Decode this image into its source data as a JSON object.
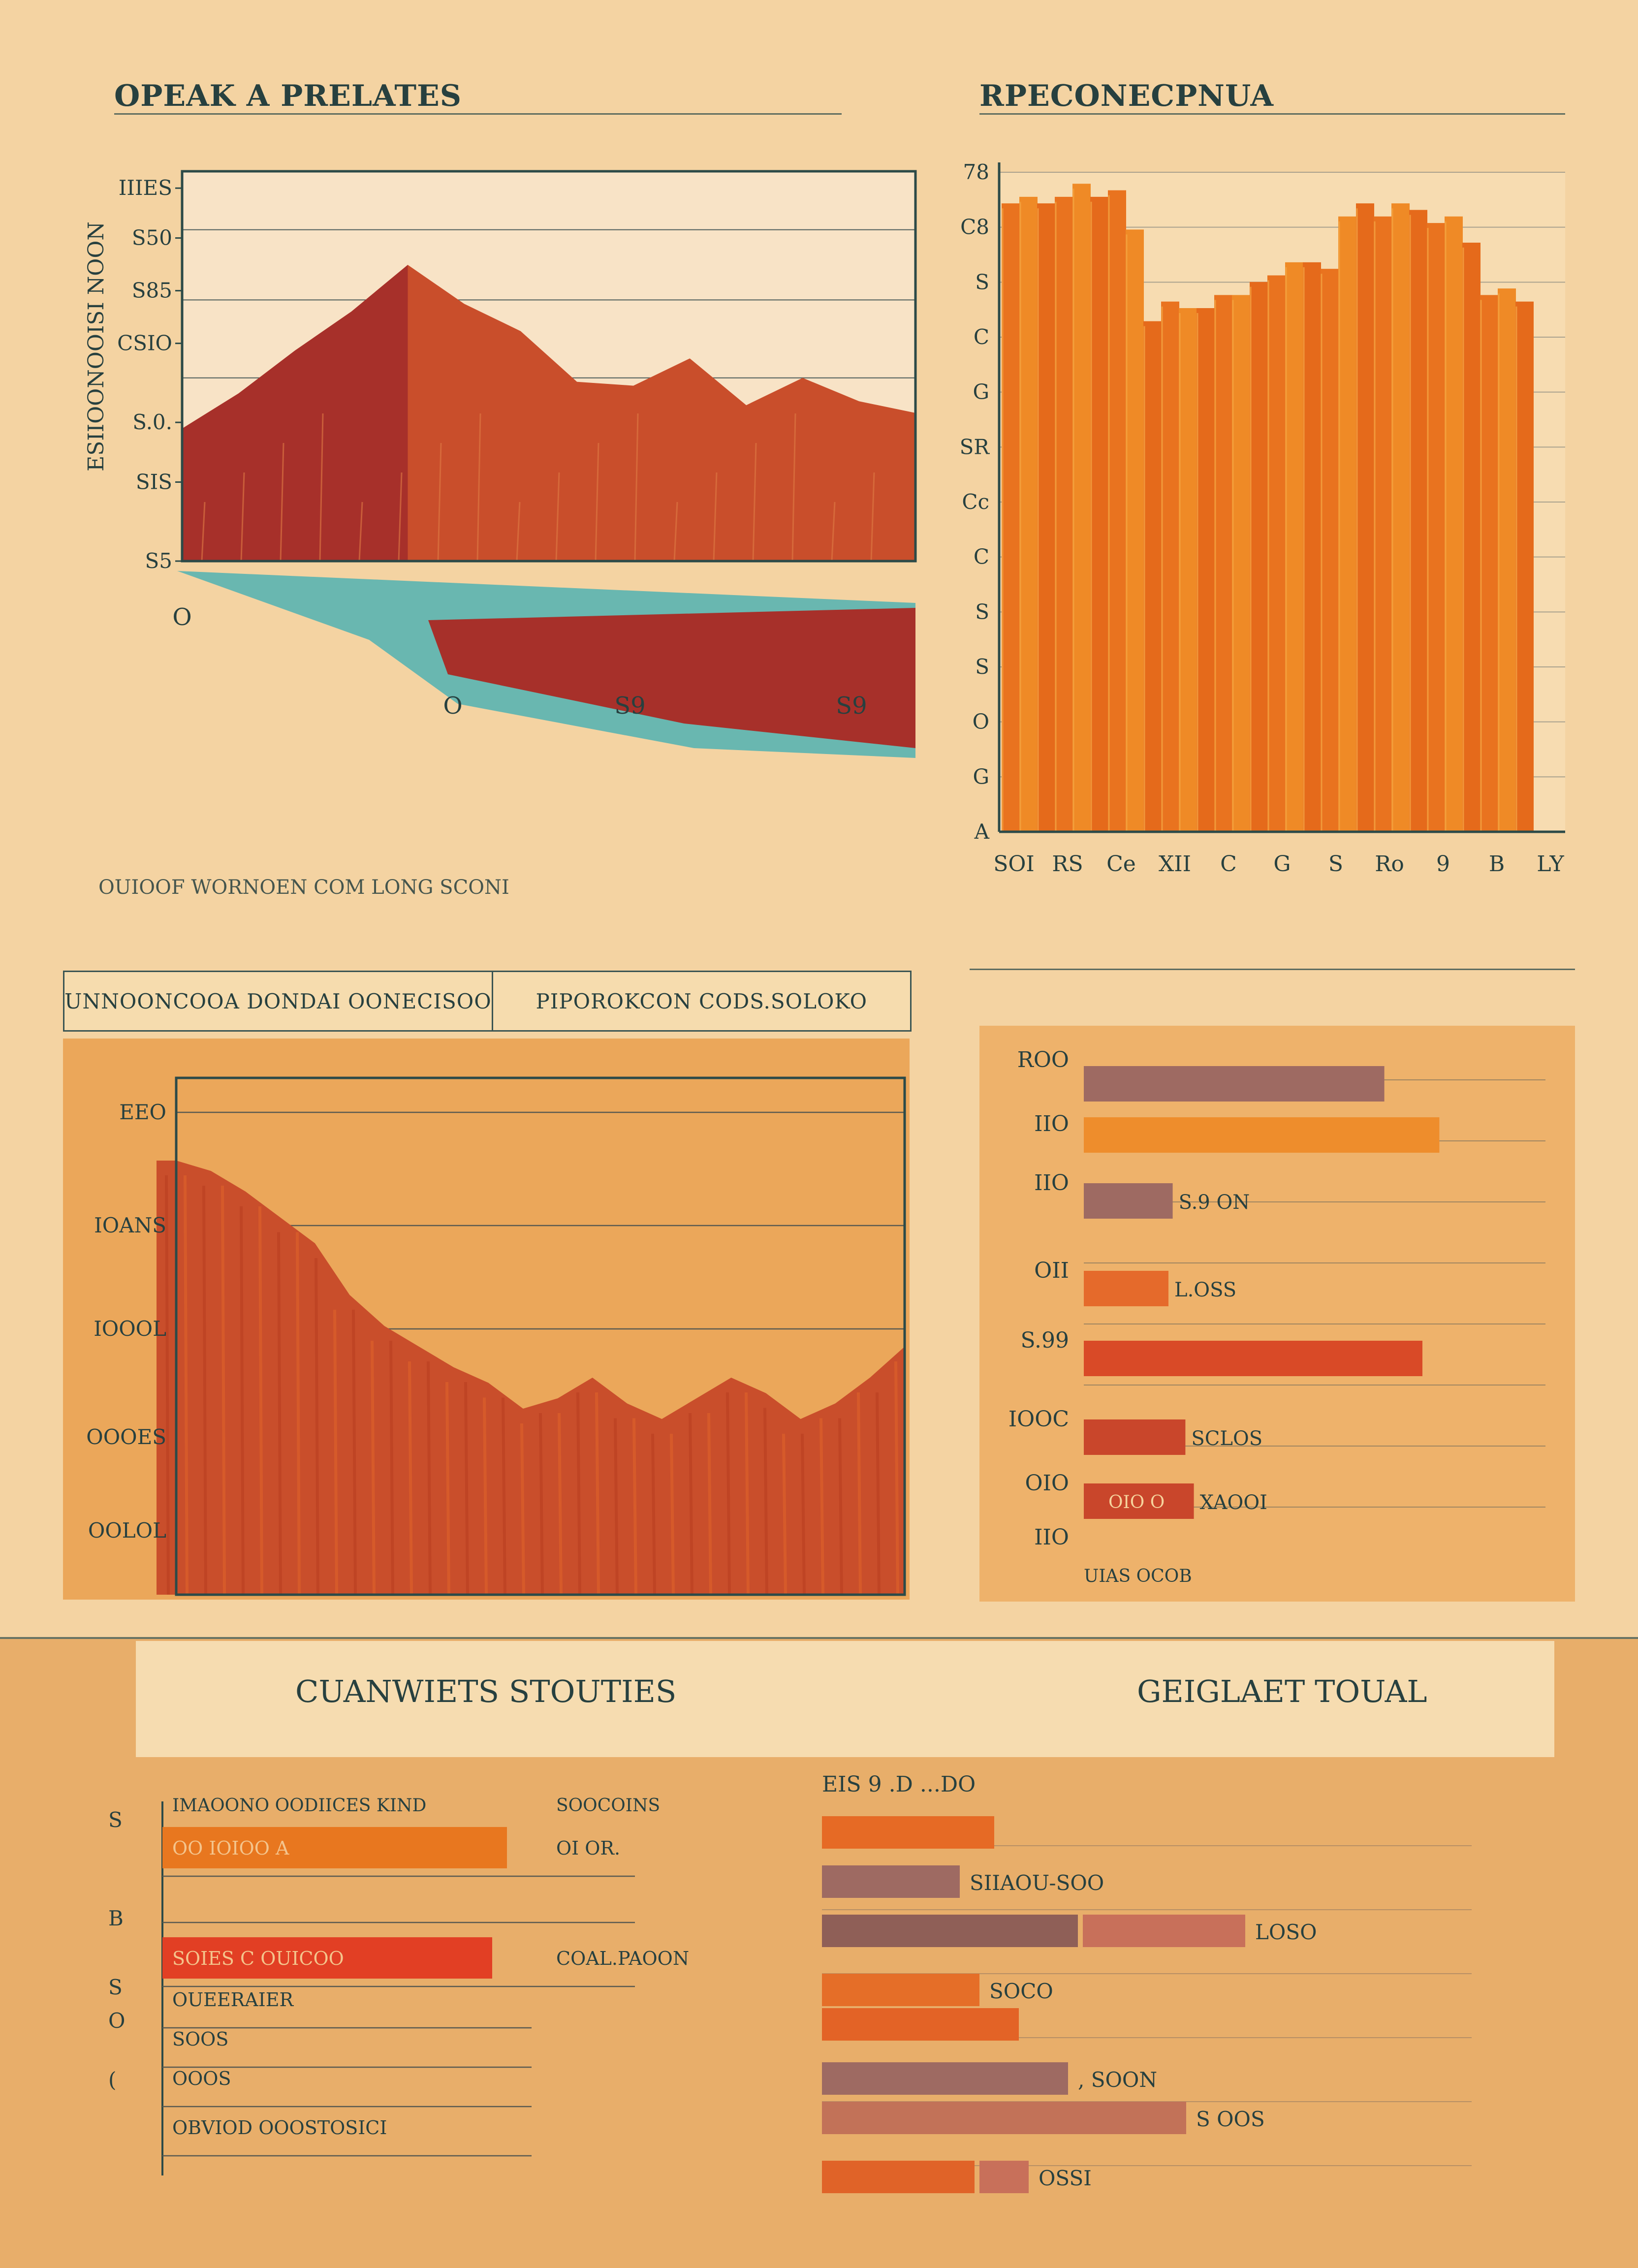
{
  "panels": {
    "top_left": {
      "title": "OPEAK A PRELATES",
      "caption": "OUIOOF WORNOEN COM LONG SCONI"
    },
    "top_right": {
      "title": "RPECONECPNUA"
    },
    "tabs": [
      {
        "label": "UNNOONCOOA DONDAI OONECISOO"
      },
      {
        "label": "PIPOROKCON CODS.SOLOKO"
      }
    ],
    "bottom": {
      "left_title": "CUANWIETS STOUTIES",
      "right_title": "GEIGLAET TOUAL"
    }
  },
  "colors": {
    "background": "#f4d3a2",
    "red": "#a7302a",
    "rust": "#c94e2b",
    "orange": "#e8751f",
    "teal": "#69b7b0",
    "mauve": "#9e6a62",
    "ink": "#27403f"
  },
  "chart_data": [
    {
      "id": "mountain-area",
      "type": "area",
      "ylabel": "ESIIOONOOISI NOON",
      "yticks": [
        "IIIES",
        "S50",
        "S85",
        "CSIO",
        "S.0.",
        "SIS",
        "S5"
      ],
      "xticks": [
        "O",
        "O",
        "S9",
        "S9"
      ],
      "series": [
        {
          "values": [
            3.4,
            4.3,
            5.4,
            6.4,
            7.6,
            6.6,
            5.9,
            4.6,
            4.5,
            5.2,
            4.0,
            4.7,
            4.1,
            3.8
          ]
        }
      ],
      "ylim": [
        0,
        10
      ],
      "grid": true
    },
    {
      "id": "tall-bars",
      "type": "bar",
      "yticks": [
        "78",
        "C8",
        "S",
        "C",
        "G",
        "SR",
        "Cc",
        "C",
        "S",
        "S",
        "O",
        "G",
        "A"
      ],
      "xticks": [
        "SOI",
        "RS",
        "Ce",
        "XII",
        "C",
        "G",
        "S",
        "Ro",
        "9",
        "B",
        "LY"
      ],
      "values": [
        96,
        97,
        96,
        97,
        99,
        97,
        98,
        92,
        78,
        81,
        80,
        80,
        82,
        82,
        84,
        85,
        87,
        87,
        86,
        94,
        96,
        94,
        96,
        95,
        93,
        94,
        90,
        82,
        83,
        81
      ],
      "ylim": [
        0,
        100
      ],
      "grid": true
    },
    {
      "id": "decline-area",
      "type": "area",
      "yticks": [
        "EEO",
        "IOANS",
        "IOOOL",
        "OOOES",
        "OOLOL"
      ],
      "series": [
        {
          "values": [
            84,
            82,
            78,
            73,
            68,
            58,
            52,
            48,
            44,
            41,
            36,
            38,
            42,
            37,
            34,
            38,
            42,
            39,
            34,
            37,
            42,
            48
          ]
        }
      ],
      "ylim": [
        0,
        100
      ],
      "grid": true
    },
    {
      "id": "right-bars",
      "type": "bar",
      "yticks": [
        "ROO",
        "IIO",
        "IIO",
        "OII",
        "S.99",
        "IOOC",
        "OIO",
        "IIO"
      ],
      "values": [
        71,
        84,
        21,
        20,
        80,
        24,
        26
      ],
      "value_labels": [
        "",
        "",
        "S.9 ON",
        "L.OSS",
        "",
        "SCLOS",
        "XAOOI"
      ],
      "inbar_labels": [
        "",
        "",
        "",
        "",
        "",
        "",
        "OIO O"
      ],
      "footer": "UIAS OCOB",
      "xlim": [
        0,
        100
      ]
    },
    {
      "id": "stacked-list",
      "type": "bar",
      "yticks": [
        "S",
        "B",
        "S",
        "O",
        "("
      ],
      "header_left": "IMAOONO OODIICES KIND",
      "header_right": "SOOCOINS",
      "rows": [
        {
          "label": "OO IOIOO A",
          "value": 70,
          "value_label": "OI OR.",
          "color": "#e8771f"
        },
        {
          "label": "",
          "value": 0,
          "value_label": "",
          "color": ""
        },
        {
          "label": "SOIES C OUICOO",
          "value": 67,
          "value_label": "COAL.PAOON",
          "color": "#e23f24"
        },
        {
          "label": "OUEERAIER",
          "value": 0,
          "value_label": "",
          "color": ""
        },
        {
          "label": "SOOS",
          "value": 0,
          "value_label": "",
          "color": ""
        },
        {
          "label": "OOOS",
          "value": 0,
          "value_label": "",
          "color": ""
        },
        {
          "label": "OBVIOD OOOSTOSICI",
          "value": 0,
          "value_label": "",
          "color": ""
        }
      ],
      "xlim": [
        0,
        100
      ]
    },
    {
      "id": "total-bars",
      "type": "bar",
      "header": "EIS 9 .D ...DO",
      "series": [
        {
          "name": "",
          "values": [
            35,
            28,
            52,
            32,
            40,
            50,
            74,
            31
          ]
        },
        {
          "name": "",
          "values": [
            0,
            0,
            33,
            0,
            0,
            0,
            0,
            10
          ]
        }
      ],
      "value_labels": [
        "",
        "SIIAOU-SOO",
        "LOSO",
        "SOCO",
        "",
        ", SOON",
        "S OOS",
        "OSSI"
      ],
      "xlim": [
        0,
        100
      ]
    }
  ]
}
